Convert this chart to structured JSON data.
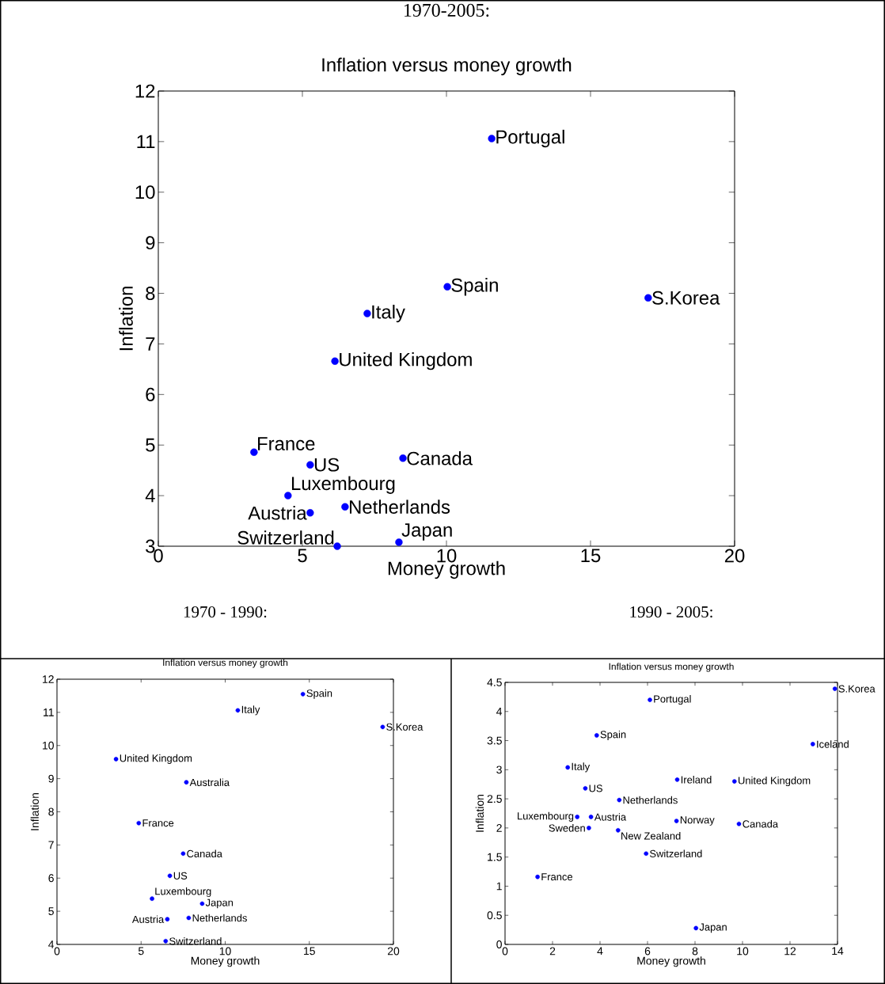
{
  "chart_data": [
    {
      "type": "scatter",
      "title": "1970-2005:",
      "subtitle": "Inflation versus money growth",
      "xlabel": "Money growth",
      "ylabel": "Inflation",
      "color": "#0000ff",
      "marker": "circle",
      "xlim": [
        0,
        20
      ],
      "ylim": [
        3,
        12
      ],
      "xticks": [
        0,
        5,
        10,
        15,
        20
      ],
      "yticks": [
        3,
        4,
        5,
        6,
        7,
        8,
        9,
        10,
        11,
        12
      ],
      "x": [
        11.57,
        10.03,
        17.0,
        7.25,
        6.13,
        3.32,
        5.27,
        8.49,
        4.5,
        6.48,
        5.27,
        8.35,
        6.21
      ],
      "values": [
        11.06,
        8.13,
        7.91,
        7.6,
        6.66,
        4.86,
        4.61,
        4.74,
        4.0,
        3.78,
        3.66,
        3.08,
        3.0
      ],
      "annotations": [
        {
          "text": "Portugal",
          "x": 11.57,
          "y": 11.06
        },
        {
          "text": "Spain",
          "x": 10.03,
          "y": 8.13
        },
        {
          "text": "S.Korea",
          "x": 17.0,
          "y": 7.91
        },
        {
          "text": "Italy",
          "x": 7.25,
          "y": 7.6
        },
        {
          "text": "United Kingdom",
          "x": 6.13,
          "y": 6.66
        },
        {
          "text": "France",
          "x": 3.32,
          "y": 4.86
        },
        {
          "text": "US",
          "x": 5.27,
          "y": 4.61
        },
        {
          "text": "Canada",
          "x": 8.49,
          "y": 4.74
        },
        {
          "text": "Luxembourg",
          "x": 4.5,
          "y": 4.0
        },
        {
          "text": "Netherlands",
          "x": 6.48,
          "y": 3.78
        },
        {
          "text": "Austria",
          "x": 5.27,
          "y": 3.66
        },
        {
          "text": "Japan",
          "x": 8.35,
          "y": 3.08
        },
        {
          "text": "Switzerland",
          "x": 6.21,
          "y": 3.0
        }
      ]
    },
    {
      "type": "scatter",
      "title": "1970 - 1990:",
      "subtitle": "Inflation versus money growth",
      "xlabel": "Money growth",
      "ylabel": "Inflation",
      "color": "#0000ff",
      "marker": "circle",
      "xlim": [
        0,
        20
      ],
      "ylim": [
        4,
        12
      ],
      "xticks": [
        0,
        5,
        10,
        15,
        20
      ],
      "yticks": [
        4,
        5,
        6,
        7,
        8,
        9,
        10,
        11,
        12
      ],
      "x": [
        14.62,
        10.75,
        19.36,
        3.51,
        7.69,
        4.86,
        7.5,
        6.71,
        5.65,
        8.63,
        6.56,
        7.83,
        6.46
      ],
      "values": [
        11.55,
        11.06,
        10.56,
        9.59,
        8.89,
        7.66,
        6.74,
        6.07,
        5.38,
        5.23,
        4.76,
        4.8,
        4.1
      ],
      "annotations": [
        {
          "text": "Spain",
          "x": 14.62,
          "y": 11.55
        },
        {
          "text": "Italy",
          "x": 10.75,
          "y": 11.06
        },
        {
          "text": "S.Korea",
          "x": 19.36,
          "y": 10.56
        },
        {
          "text": "United Kingdom",
          "x": 3.51,
          "y": 9.59
        },
        {
          "text": "Australia",
          "x": 7.69,
          "y": 8.89
        },
        {
          "text": "France",
          "x": 4.86,
          "y": 7.66
        },
        {
          "text": "Canada",
          "x": 7.5,
          "y": 6.74
        },
        {
          "text": "US",
          "x": 6.71,
          "y": 6.07
        },
        {
          "text": "Luxembourg",
          "x": 5.65,
          "y": 5.38
        },
        {
          "text": "Japan",
          "x": 8.63,
          "y": 5.23
        },
        {
          "text": "Austria",
          "x": 6.56,
          "y": 4.76
        },
        {
          "text": "Netherlands",
          "x": 7.83,
          "y": 4.8
        },
        {
          "text": "Switzerland",
          "x": 6.46,
          "y": 4.1
        }
      ]
    },
    {
      "type": "scatter",
      "title": "1990 - 2005:",
      "subtitle": "Inflation versus money growth",
      "xlabel": "Money growth",
      "ylabel": "Inflation",
      "color": "#0000ff",
      "marker": "circle",
      "xlim": [
        0,
        14
      ],
      "ylim": [
        0,
        4.5
      ],
      "xticks": [
        0,
        2,
        4,
        6,
        8,
        10,
        12,
        14
      ],
      "yticks": [
        0,
        0.5,
        1,
        1.5,
        2,
        2.5,
        3,
        3.5,
        4,
        4.5
      ],
      "x": [
        13.89,
        6.1,
        3.86,
        12.96,
        2.64,
        7.25,
        9.66,
        3.38,
        4.81,
        3.04,
        3.62,
        7.22,
        9.85,
        3.53,
        4.76,
        5.94,
        1.37,
        8.04
      ],
      "values": [
        4.39,
        4.2,
        3.59,
        3.44,
        3.04,
        2.83,
        2.8,
        2.68,
        2.48,
        2.19,
        2.19,
        2.12,
        2.07,
        2.0,
        1.96,
        1.56,
        1.16,
        0.28
      ],
      "annotations": [
        {
          "text": "S.Korea",
          "x": 13.89,
          "y": 4.39
        },
        {
          "text": "Portugal",
          "x": 6.1,
          "y": 4.2
        },
        {
          "text": "Spain",
          "x": 3.86,
          "y": 3.59
        },
        {
          "text": "Iceland",
          "x": 12.96,
          "y": 3.44
        },
        {
          "text": "Italy",
          "x": 2.64,
          "y": 3.04
        },
        {
          "text": "Ireland",
          "x": 7.25,
          "y": 2.83
        },
        {
          "text": "United Kingdom",
          "x": 9.66,
          "y": 2.8
        },
        {
          "text": "US",
          "x": 3.38,
          "y": 2.68
        },
        {
          "text": "Netherlands",
          "x": 4.81,
          "y": 2.48
        },
        {
          "text": "Luxembourg",
          "x": 3.04,
          "y": 2.19
        },
        {
          "text": "Austria",
          "x": 3.62,
          "y": 2.19
        },
        {
          "text": "Norway",
          "x": 7.22,
          "y": 2.12
        },
        {
          "text": "Canada",
          "x": 9.85,
          "y": 2.07
        },
        {
          "text": "Sweden",
          "x": 3.53,
          "y": 2.0
        },
        {
          "text": "New Zealand",
          "x": 4.76,
          "y": 1.96
        },
        {
          "text": "Switzerland",
          "x": 5.94,
          "y": 1.56
        },
        {
          "text": "France",
          "x": 1.37,
          "y": 1.16
        },
        {
          "text": "Japan",
          "x": 8.04,
          "y": 0.28
        }
      ]
    }
  ]
}
